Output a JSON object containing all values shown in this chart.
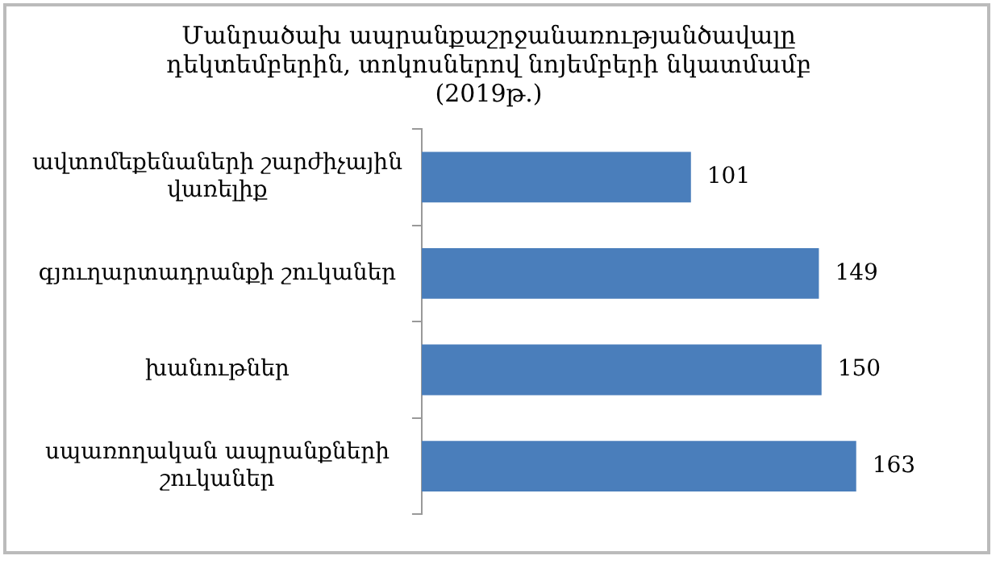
{
  "chart_data": {
    "type": "bar",
    "orientation": "horizontal",
    "title": "Մանրածախ ապրանքաշրջանառությանծավալը\nդեկտեմբերին, տոկոսներով նոյեմբերի նկատմամբ\n(2019թ.)",
    "categories": [
      "ավտոմեքենաների շարժիչային\nվառելիք",
      "գյուղարտադրանքի շուկաներ",
      "խանութներ",
      "սպառողական ապրանքների\nշուկաներ"
    ],
    "values": [
      101,
      149,
      150,
      163
    ],
    "color": "#4a7ebb",
    "data_labels": true,
    "tick_labels": "y",
    "grid": false,
    "legend": false
  }
}
